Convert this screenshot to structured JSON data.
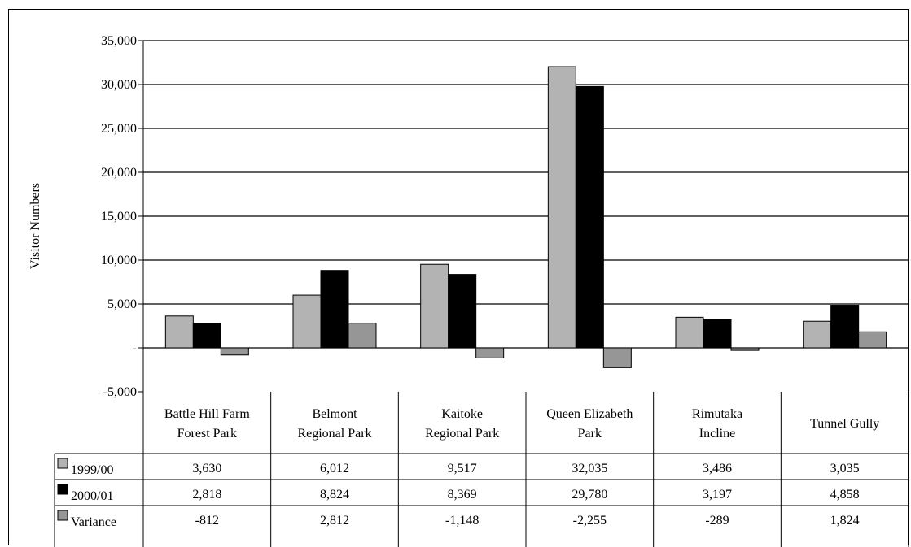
{
  "chart_data": {
    "type": "bar",
    "title": "",
    "xlabel": "",
    "ylabel": "Visitor Numbers",
    "ylim": [
      -5000,
      35000
    ],
    "y_ticks": [
      -5000,
      0,
      5000,
      10000,
      15000,
      20000,
      25000,
      30000,
      35000
    ],
    "y_tick_labels": [
      "-5,000",
      "-",
      "5,000",
      "10,000",
      "15,000",
      "20,000",
      "25,000",
      "30,000",
      "35,000"
    ],
    "grid": true,
    "legend": "data-table",
    "categories": [
      [
        "Battle Hill Farm",
        "Forest Park"
      ],
      [
        "Belmont",
        "Regional Park"
      ],
      [
        "Kaitoke",
        "Regional Park"
      ],
      [
        "Queen Elizabeth",
        "Park"
      ],
      [
        "Rimutaka",
        "Incline"
      ],
      [
        "Tunnel Gully"
      ]
    ],
    "series": [
      {
        "name": "1999/00",
        "color": "#b3b3b3",
        "values": [
          3630,
          6012,
          9517,
          32035,
          3486,
          3035
        ],
        "labels": [
          "3,630",
          "6,012",
          "9,517",
          "32,035",
          "3,486",
          "3,035"
        ]
      },
      {
        "name": "2000/01",
        "color": "#000000",
        "values": [
          2818,
          8824,
          8369,
          29780,
          3197,
          4858
        ],
        "labels": [
          "2,818",
          "8,824",
          "8,369",
          "29,780",
          "3,197",
          "4,858"
        ]
      },
      {
        "name": "Variance",
        "color": "#969696",
        "values": [
          -812,
          2812,
          -1148,
          -2255,
          -289,
          1824
        ],
        "labels": [
          "-812",
          "2,812",
          "-1,148",
          "-2,255",
          "-289",
          "1,824"
        ]
      }
    ]
  }
}
